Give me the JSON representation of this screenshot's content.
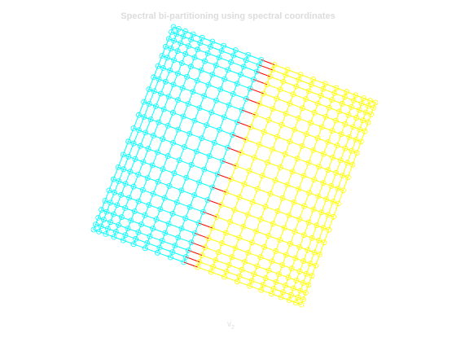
{
  "figure": {
    "title": "Spectral bi-partitioning using spectral coordinates",
    "xlabel_main": "v",
    "xlabel_sub": "2"
  },
  "colors": {
    "part_a": "#00ffff",
    "part_b": "#ffff00",
    "cut_edges": "#ff0000",
    "text": "#dcdcdc"
  },
  "chart_data": {
    "type": "graph",
    "title": "Spectral bi-partitioning using spectral coordinates",
    "xlabel": "v2",
    "grid": {
      "rows": 21,
      "cols": 21
    },
    "partition": {
      "part_a": {
        "color": "cyan",
        "columns": "0-9"
      },
      "part_b": {
        "color": "yellow",
        "columns": "10-20"
      },
      "cut": {
        "color": "red",
        "between_columns": [
          9,
          10
        ]
      }
    }
  }
}
